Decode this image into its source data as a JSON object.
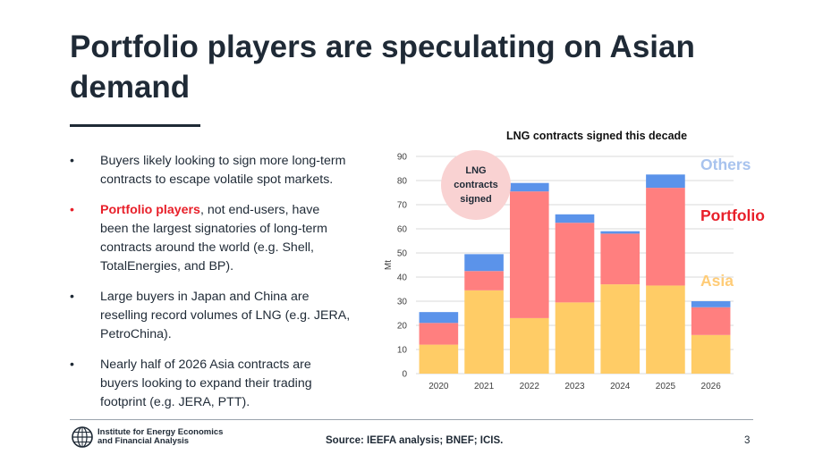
{
  "slide": {
    "title": "Portfolio players are speculating on Asian demand",
    "bullets": [
      {
        "text": "Buyers likely looking to sign more long-term contracts to escape volatile spot markets."
      },
      {
        "highlight": "Portfolio players",
        "text": ", not end-users, have been the largest signatories of long-term contracts around the world (e.g. Shell, TotalEnergies, and BP)."
      },
      {
        "text": "Large buyers in Japan and China are reselling record volumes of LNG (e.g. JERA, PetroChina)."
      },
      {
        "text": "Nearly half of 2026 Asia contracts are buyers looking to expand their trading footprint (e.g. JERA, PTT)."
      }
    ],
    "source": "Source: IEEFA analysis; BNEF; ICIS.",
    "page_number": "3",
    "logo_line1": "Institute for Energy Economics",
    "logo_line2": "and Financial Analysis"
  },
  "chart_data": {
    "type": "bar",
    "stacked": true,
    "title": "LNG contracts signed this decade",
    "ylabel": "Mt",
    "ylim": [
      0,
      90
    ],
    "yticks": [
      0,
      10,
      20,
      30,
      40,
      50,
      60,
      70,
      80,
      90
    ],
    "categories": [
      "2020",
      "2021",
      "2022",
      "2023",
      "2024",
      "2025",
      "2026"
    ],
    "series": [
      {
        "name": "Asia",
        "color": "#ffcc66",
        "values": [
          12,
          34.5,
          23,
          29.5,
          37,
          36.5,
          16
        ]
      },
      {
        "name": "Portfolio",
        "color": "#ff7f7f",
        "values": [
          9,
          8,
          52.5,
          33,
          21,
          40.5,
          11.5
        ]
      },
      {
        "name": "Others",
        "color": "#5b93ea",
        "values": [
          4.5,
          7,
          3.5,
          3.5,
          1,
          5.5,
          2.5
        ]
      }
    ],
    "legend_labels": [
      {
        "name": "Others",
        "color": "#a8c3ee"
      },
      {
        "name": "Portfolio",
        "color": "#e8202a"
      },
      {
        "name": "Asia",
        "color": "#ffcc77"
      }
    ],
    "annotation": "LNG contracts signed",
    "grid": true
  }
}
